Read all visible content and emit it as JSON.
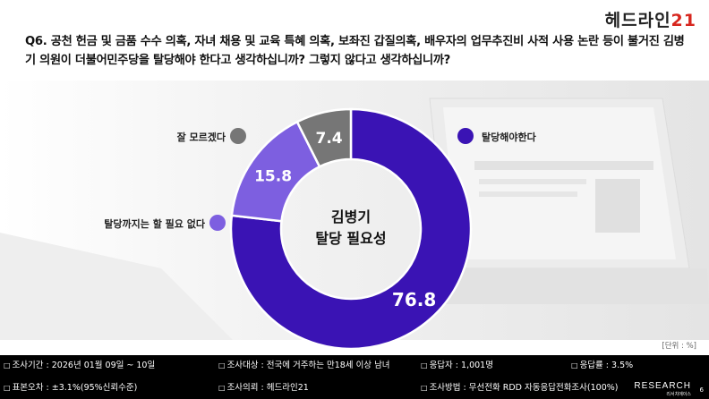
{
  "logo": {
    "text": "헤드라인",
    "num": "21"
  },
  "question": "Q6. 공천 헌금 및 금품 수수 의혹, 자녀 채용 및 교육 특혜 의혹, 보좌진 갑질의혹, 배우자의 업무추진비 사적 사용 논란 등이 불거진 김병기 의원이 더불어민주당을 탈당해야 한다고 생각하십니까? 그렇지 않다고 생각하십니까?",
  "unit": "[단위 : %]",
  "chart_data": {
    "type": "pie",
    "donut": true,
    "center_label": [
      "김병기",
      "탈당 필요성"
    ],
    "slices": [
      {
        "label": "탈당해야한다",
        "value": 76.8,
        "color": "#3a13b4"
      },
      {
        "label": "탈당까지는 할 필요 없다",
        "value": 15.8,
        "color": "#7d5fe0"
      },
      {
        "label": "잘 모르겠다",
        "value": 7.4,
        "color": "#767676"
      }
    ]
  },
  "footer": {
    "row1": [
      "조사기간 : 2026년 01월 09일 ~ 10일",
      "조사대상 : 전국에 거주하는 만18세 이상 남녀",
      "응답자 : 1,001명",
      "응답률 : 3.5%"
    ],
    "row2": [
      "표본오차 : ±3.1%(95%신뢰수준)",
      "조사의뢰 : 헤드라인21",
      "조사방법 : 무선전화 RDD 자동응답전화조사(100%)"
    ]
  },
  "brand": {
    "name": "RESEARCH",
    "sub": "리서치에이스",
    "page": "6"
  }
}
